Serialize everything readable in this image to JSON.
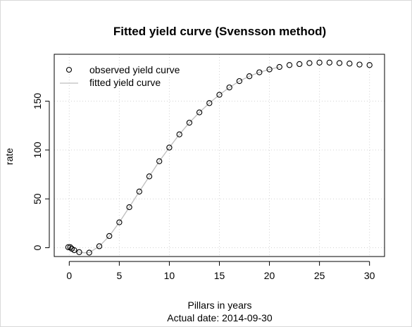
{
  "chart_data": {
    "type": "scatter",
    "title": "Fitted yield curve (Svensson method)",
    "xlabel": "Pillars in years",
    "subtitle": "Actual date:  2014-09-30",
    "ylabel": "rate",
    "xlim": [
      -1.5,
      31.5
    ],
    "ylim": [
      -9,
      198
    ],
    "xticks": [
      0,
      5,
      10,
      15,
      20,
      25,
      30
    ],
    "yticks": [
      0,
      50,
      100,
      150
    ],
    "grid": true,
    "legend_position": "top-left",
    "series": [
      {
        "name": "observed yield curve",
        "marker": "open-circle",
        "x": [
          -0.1,
          0.1,
          0.25,
          0.5,
          1,
          2,
          3,
          4,
          5,
          6,
          7,
          8,
          9,
          10,
          11,
          12,
          13,
          14,
          15,
          16,
          17,
          18,
          19,
          20,
          21,
          22,
          23,
          24,
          25,
          26,
          27,
          28,
          29,
          30
        ],
        "values": [
          0.5,
          0.5,
          -1.0,
          -2.5,
          -4.5,
          -5.0,
          1.5,
          12.0,
          26.0,
          41.5,
          57.5,
          73.0,
          88.5,
          102.5,
          116.0,
          128.0,
          138.5,
          148.0,
          156.5,
          164.0,
          170.5,
          175.5,
          179.5,
          182.5,
          185.0,
          187.0,
          188.0,
          189.0,
          189.5,
          189.5,
          189.0,
          188.5,
          187.5,
          187.0
        ]
      },
      {
        "name": "fitted yield curve",
        "line": "solid",
        "color": "#bdbdbd",
        "x": [
          0,
          0.5,
          1,
          1.5,
          2,
          3,
          4,
          5,
          6,
          7,
          8,
          9,
          10,
          11,
          12,
          13,
          14,
          15,
          16,
          17,
          18,
          19,
          20,
          21
        ],
        "values": [
          0.5,
          -2.5,
          -4.5,
          -5.2,
          -5.0,
          1.5,
          12.0,
          26.0,
          41.5,
          57.5,
          73.0,
          88.5,
          102.5,
          116.0,
          128.0,
          138.5,
          148.0,
          156.5,
          164.0,
          170.5,
          175.5,
          179.5,
          182.5,
          185.0
        ]
      }
    ]
  }
}
